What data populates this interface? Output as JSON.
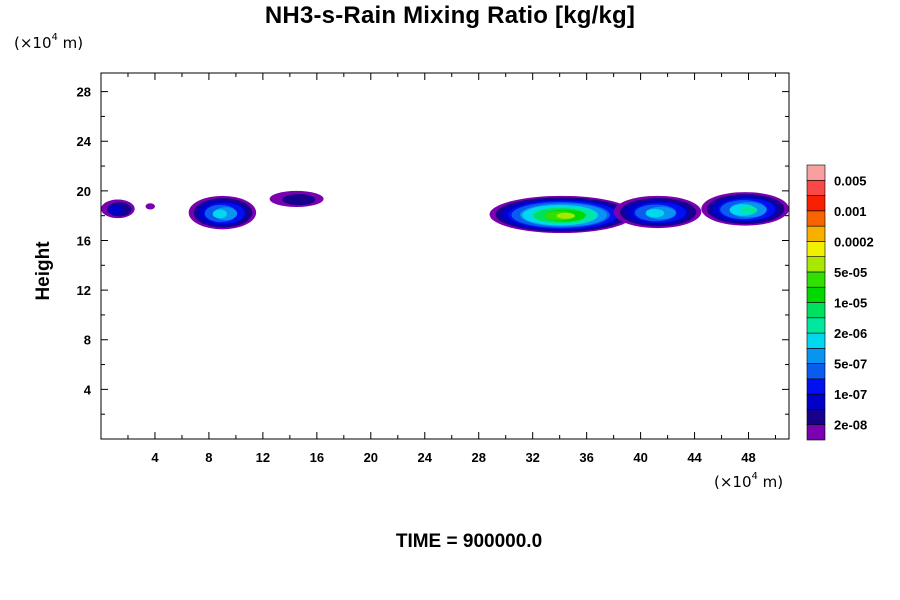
{
  "chart_data": {
    "type": "heatmap",
    "title": "NH3-s-Rain Mixing Ratio [kg/kg]",
    "ylabel": "Height",
    "xlabel": "",
    "x_unit": {
      "prefix": "(×10",
      "exp": "4",
      "suffix": " m)"
    },
    "y_unit": {
      "prefix": "(×10",
      "exp": "4",
      "suffix": " m)"
    },
    "xlim": [
      0,
      51
    ],
    "ylim": [
      0,
      29.5
    ],
    "x_ticks": [
      4,
      8,
      12,
      16,
      20,
      24,
      28,
      32,
      36,
      40,
      44,
      48
    ],
    "y_ticks": [
      4,
      8,
      12,
      16,
      20,
      24,
      28
    ],
    "footer": {
      "label": "TIME = ",
      "value": "900000.0"
    },
    "colorbar": {
      "colors": [
        "#7a00b0",
        "#16008c",
        "#0000c8",
        "#0010f0",
        "#0a5cf0",
        "#0894f0",
        "#00d8f0",
        "#00e8a0",
        "#00e060",
        "#00d800",
        "#30e000",
        "#a8e800",
        "#f0f000",
        "#f8b000",
        "#f86400",
        "#f82000",
        "#f84848",
        "#f8a0a0"
      ],
      "labels": [
        "2e-08",
        "1e-07",
        "5e-07",
        "2e-06",
        "1e-05",
        "5e-05",
        "0.0002",
        "0.001",
        "0.005"
      ]
    },
    "regions": [
      {
        "x0": 0.0,
        "x1": 2.5,
        "y0": 17.8,
        "y1": 19.3,
        "level": 2
      },
      {
        "x0": 3.3,
        "x1": 4.0,
        "y0": 18.5,
        "y1": 19.0,
        "level": 0
      },
      {
        "x0": 6.5,
        "x1": 11.5,
        "y0": 16.9,
        "y1": 19.6,
        "level": 6
      },
      {
        "x0": 12.5,
        "x1": 16.5,
        "y0": 18.7,
        "y1": 20.0,
        "level": 1
      },
      {
        "x0": 28.8,
        "x1": 39.5,
        "y0": 16.6,
        "y1": 19.6,
        "level": 11
      },
      {
        "x0": 38.0,
        "x1": 44.5,
        "y0": 17.0,
        "y1": 19.6,
        "level": 6
      },
      {
        "x0": 44.5,
        "x1": 51.0,
        "y0": 17.2,
        "y1": 19.9,
        "level": 7
      }
    ]
  }
}
